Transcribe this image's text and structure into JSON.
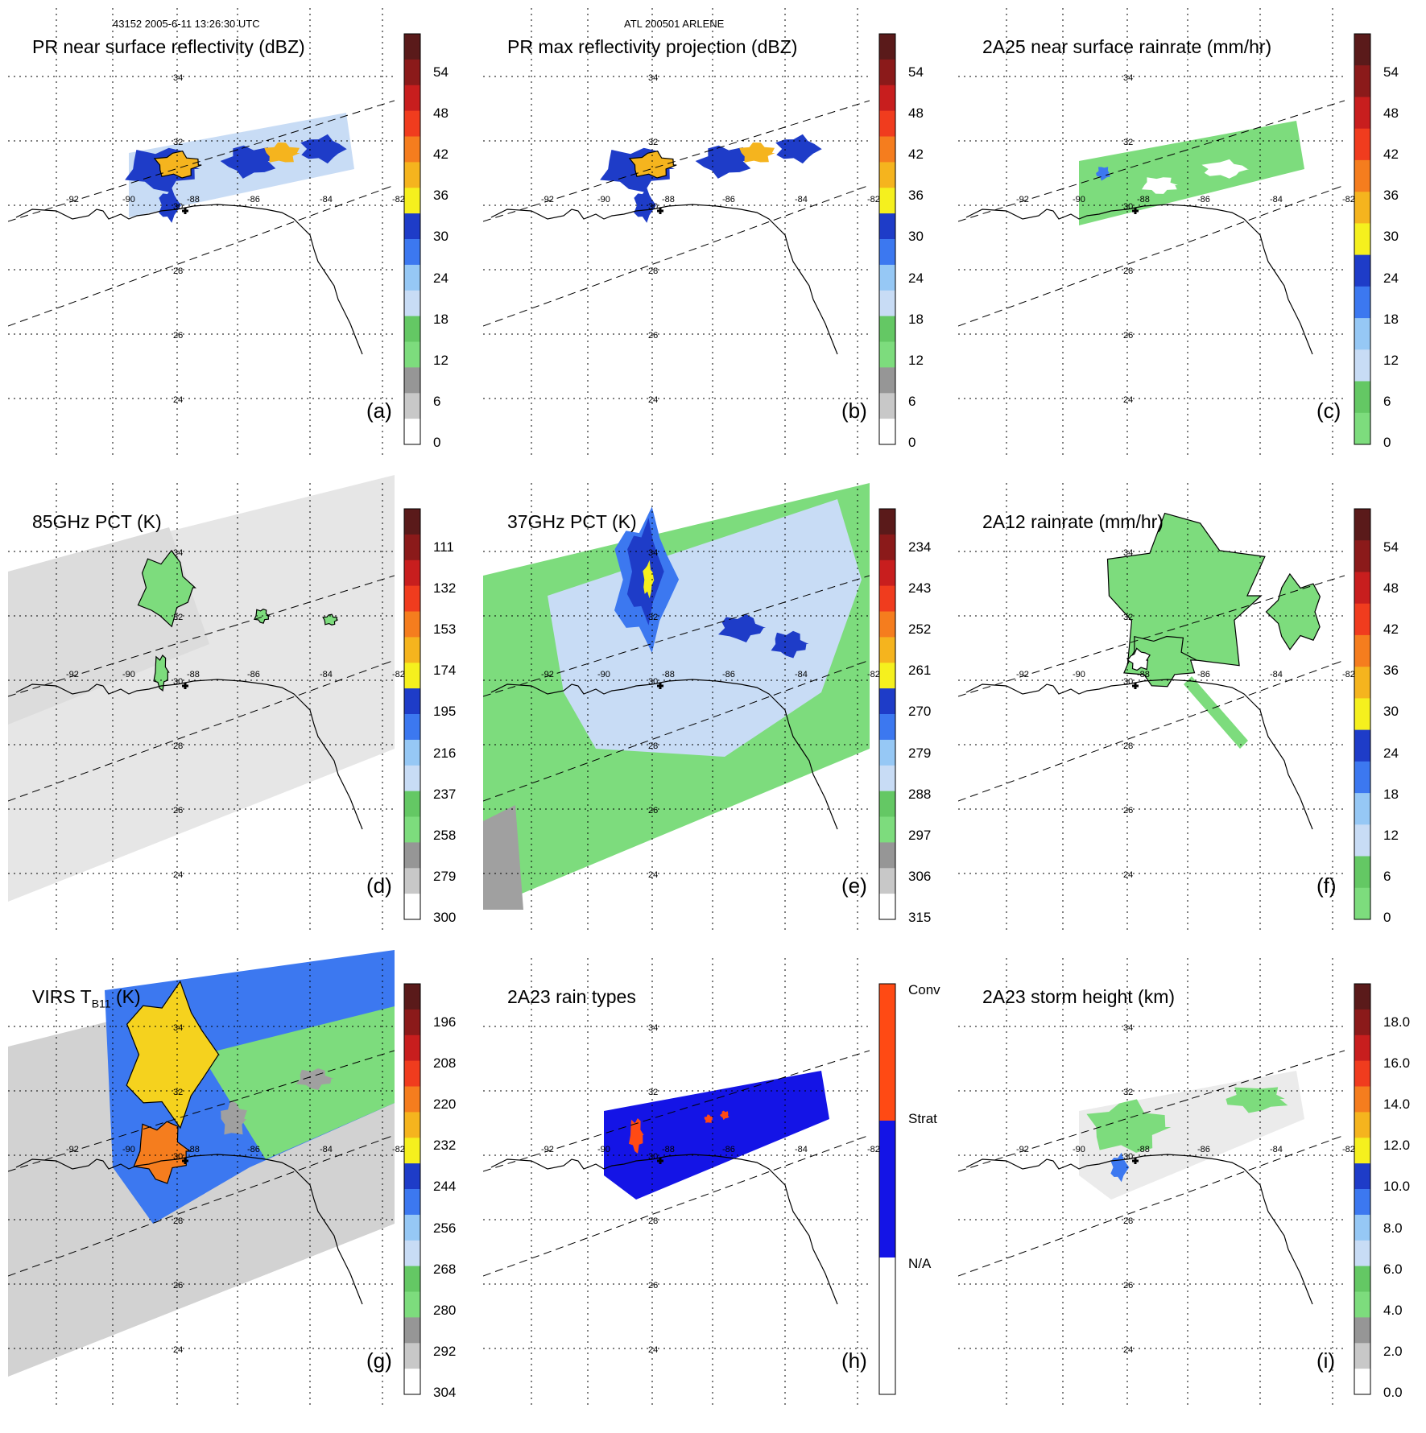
{
  "header": {
    "left": "43152 2005-6-11 13:26:30 UTC",
    "center": "ATL 200501 ARLENE"
  },
  "map_labels": {
    "lats": [
      "34",
      "32",
      "30",
      "28",
      "26",
      "24"
    ],
    "lons": [
      "-92",
      "-90",
      "-88",
      "-86",
      "-84",
      "-82"
    ]
  },
  "panels": [
    {
      "id": "a",
      "title": "PR near surface reflectivity (dBZ)",
      "tag": "(a)",
      "ticks": [
        "54",
        "48",
        "42",
        "36",
        "30",
        "24",
        "18",
        "12",
        "6",
        "0"
      ],
      "colors": [
        "#5a1a1a",
        "#8b1a1a",
        "#c81e1e",
        "#f03c1e",
        "#f57d1e",
        "#f5b41e",
        "#f5f01e",
        "#1e3cc8",
        "#3c78f0",
        "#96c8f5",
        "#c8dcf5",
        "#64c864",
        "#7ddc7d",
        "#969696",
        "#c8c8c8",
        "#ffffff"
      ],
      "kind": "pr"
    },
    {
      "id": "b",
      "title": "PR max reflectivity projection (dBZ)",
      "tag": "(b)",
      "ticks": [
        "54",
        "48",
        "42",
        "36",
        "30",
        "24",
        "18",
        "12",
        "6",
        "0"
      ],
      "colors": [
        "#5a1a1a",
        "#8b1a1a",
        "#c81e1e",
        "#f03c1e",
        "#f57d1e",
        "#f5b41e",
        "#f5f01e",
        "#1e3cc8",
        "#3c78f0",
        "#96c8f5",
        "#c8dcf5",
        "#64c864",
        "#7ddc7d",
        "#969696",
        "#c8c8c8",
        "#ffffff"
      ],
      "kind": "prmax"
    },
    {
      "id": "c",
      "title": "2A25 near surface rainrate (mm/hr)",
      "tag": "(c)",
      "ticks": [
        "54",
        "48",
        "42",
        "36",
        "30",
        "24",
        "18",
        "12",
        "6",
        "0"
      ],
      "colors": [
        "#5a1a1a",
        "#8b1a1a",
        "#c81e1e",
        "#f03c1e",
        "#f57d1e",
        "#f5b41e",
        "#f5f01e",
        "#1e3cc8",
        "#3c78f0",
        "#96c8f5",
        "#c8dcf5",
        "#64c864",
        "#7ddc7d"
      ],
      "kind": "rain25"
    },
    {
      "id": "d",
      "title": "85GHz PCT (K)",
      "tag": "(d)",
      "ticks": [
        "111",
        "132",
        "153",
        "174",
        "195",
        "216",
        "237",
        "258",
        "279",
        "300"
      ],
      "colors": [
        "#5a1a1a",
        "#8b1a1a",
        "#c81e1e",
        "#f03c1e",
        "#f57d1e",
        "#f5b41e",
        "#f5f01e",
        "#1e3cc8",
        "#3c78f0",
        "#96c8f5",
        "#c8dcf5",
        "#64c864",
        "#7ddc7d",
        "#969696",
        "#c8c8c8",
        "#ffffff"
      ],
      "kind": "pct85"
    },
    {
      "id": "e",
      "title": "37GHz PCT (K)",
      "tag": "(e)",
      "ticks": [
        "234",
        "243",
        "252",
        "261",
        "270",
        "279",
        "288",
        "297",
        "306",
        "315"
      ],
      "colors": [
        "#5a1a1a",
        "#8b1a1a",
        "#c81e1e",
        "#f03c1e",
        "#f57d1e",
        "#f5b41e",
        "#f5f01e",
        "#1e3cc8",
        "#3c78f0",
        "#96c8f5",
        "#c8dcf5",
        "#64c864",
        "#7ddc7d",
        "#969696",
        "#c8c8c8",
        "#ffffff"
      ],
      "kind": "pct37"
    },
    {
      "id": "f",
      "title": "2A12 rainrate (mm/hr)",
      "tag": "(f)",
      "ticks": [
        "54",
        "48",
        "42",
        "36",
        "30",
        "24",
        "18",
        "12",
        "6",
        "0"
      ],
      "colors": [
        "#5a1a1a",
        "#8b1a1a",
        "#c81e1e",
        "#f03c1e",
        "#f57d1e",
        "#f5b41e",
        "#f5f01e",
        "#1e3cc8",
        "#3c78f0",
        "#96c8f5",
        "#c8dcf5",
        "#64c864",
        "#7ddc7d"
      ],
      "kind": "rain12"
    },
    {
      "id": "g",
      "title_pre": "VIRS T",
      "title_sub": "B11",
      "title_post": " (K)",
      "tag": "(g)",
      "ticks": [
        "196",
        "208",
        "220",
        "232",
        "244",
        "256",
        "268",
        "280",
        "292",
        "304"
      ],
      "colors": [
        "#5a1a1a",
        "#8b1a1a",
        "#c81e1e",
        "#f03c1e",
        "#f57d1e",
        "#f5b41e",
        "#f5f01e",
        "#1e3cc8",
        "#3c78f0",
        "#96c8f5",
        "#c8dcf5",
        "#64c864",
        "#7ddc7d",
        "#969696",
        "#c8c8c8",
        "#ffffff"
      ],
      "kind": "virs"
    },
    {
      "id": "h",
      "title": "2A23 rain types",
      "tag": "(h)",
      "ticks": [
        "Conv",
        "Strat",
        "N/A"
      ],
      "colors": [
        "#ff4a14",
        "#1414e6",
        "#ffffff"
      ],
      "kind": "types"
    },
    {
      "id": "i",
      "title": "2A23 storm height (km)",
      "tag": "(i)",
      "ticks": [
        "18.0",
        "16.0",
        "14.0",
        "12.0",
        "10.0",
        "8.0",
        "6.0",
        "4.0",
        "2.0",
        "0.0"
      ],
      "colors": [
        "#5a1a1a",
        "#8b1a1a",
        "#c81e1e",
        "#f03c1e",
        "#f57d1e",
        "#f5b41e",
        "#f5f01e",
        "#1e3cc8",
        "#3c78f0",
        "#96c8f5",
        "#c8dcf5",
        "#64c864",
        "#7ddc7d",
        "#969696",
        "#c8c8c8",
        "#ffffff"
      ],
      "kind": "height"
    }
  ]
}
